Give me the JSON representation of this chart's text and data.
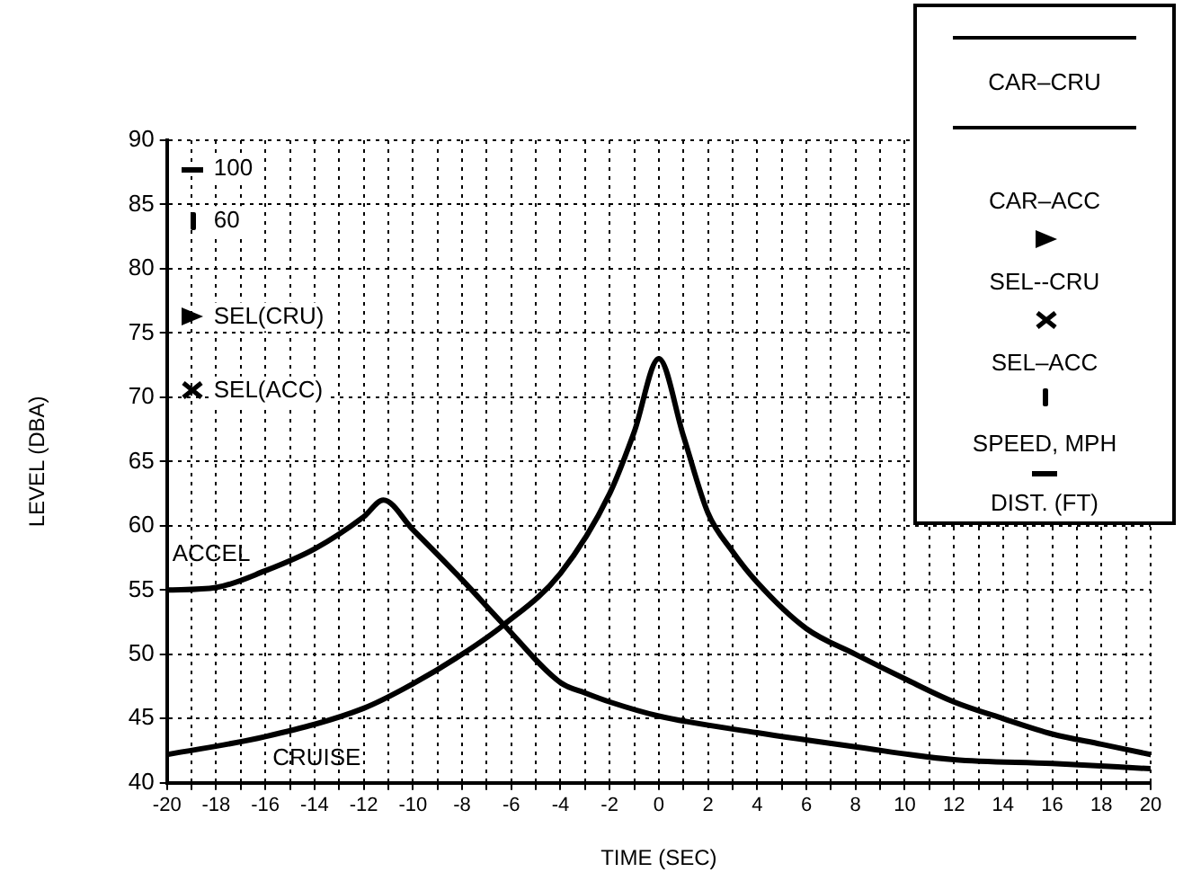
{
  "chart_data": {
    "type": "line",
    "xlabel": "TIME (SEC)",
    "ylabel": "LEVEL (DBA)",
    "xlim": [
      -20,
      20
    ],
    "xticks": [
      -20,
      {
        "value": -19,
        "label": null
      },
      -18,
      {
        "value": -17,
        "label": null
      },
      -16,
      {
        "value": -15,
        "label": null
      },
      -14,
      {
        "value": -13,
        "label": null
      },
      -12,
      {
        "value": -11,
        "label": null
      },
      -10,
      {
        "value": -9,
        "label": null
      },
      -8,
      {
        "value": -7,
        "label": null
      },
      -6,
      {
        "value": -5,
        "label": null
      },
      -4,
      {
        "value": -3,
        "label": null
      },
      -2,
      {
        "value": -1,
        "label": null
      },
      0,
      {
        "value": 1,
        "label": null
      },
      2,
      {
        "value": 3,
        "label": null
      },
      4,
      {
        "value": 5,
        "label": null
      },
      6,
      {
        "value": 7,
        "label": null
      },
      8,
      {
        "value": 9,
        "label": null
      },
      10,
      {
        "value": 11,
        "label": null
      },
      12,
      {
        "value": 13,
        "label": null
      },
      14,
      {
        "value": 15,
        "label": null
      },
      16,
      {
        "value": 17,
        "label": null
      },
      18,
      {
        "value": 19,
        "label": null
      },
      20
    ],
    "ylim": [
      40,
      90
    ],
    "yticks": [
      40,
      45,
      50,
      55,
      60,
      65,
      70,
      75,
      80,
      85,
      90
    ],
    "grid": true,
    "marker": "none",
    "line_style": "solid",
    "series": [
      {
        "name": "ACCEL",
        "color": "#000000",
        "x": [
          -20,
          -18,
          -16,
          -14,
          -12,
          -11.2,
          -10,
          -8,
          -6.3,
          -4,
          -3,
          -2,
          0,
          4,
          8,
          12,
          16,
          20
        ],
        "values": [
          55.0,
          55.2,
          56.5,
          58.2,
          60.7,
          62,
          59.7,
          55.8,
          52.3,
          47.8,
          47,
          46.3,
          45.2,
          43.9,
          42.8,
          41.8,
          41.5,
          41.1
        ]
      },
      {
        "name": "CRUISE",
        "color": "#000000",
        "x": [
          -20,
          -16,
          -12,
          -10,
          -8,
          -6.3,
          -4,
          -2,
          -1,
          0,
          1,
          2,
          3,
          4,
          6,
          8,
          10,
          12,
          14,
          16,
          18,
          20
        ],
        "values": [
          42.2,
          43.6,
          45.8,
          47.7,
          50,
          52.3,
          56.3,
          62.5,
          67.3,
          73,
          67,
          61,
          58,
          55.6,
          52,
          50,
          48.1,
          46.3,
          45,
          43.8,
          43,
          42.2
        ]
      }
    ],
    "annotations": [
      "100",
      "60",
      "SEL(CRU)",
      "SEL(ACC)",
      "CAR–CRU",
      "CAR–ACC",
      "SEL--CRU",
      "SEL–ACC",
      "SPEED, MPH",
      "DIST. (FT)"
    ]
  }
}
